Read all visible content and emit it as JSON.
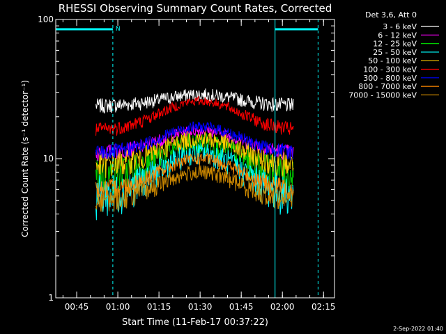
{
  "chart_data": {
    "type": "line",
    "title": "RHESSI Observing Summary Count Rates, Corrected",
    "xlabel": "Start Time (11-Feb-17 00:37:22)",
    "ylabel": "Corrected Count Rate (s⁻¹ detector⁻¹)",
    "yscale": "log",
    "ylim": [
      1,
      100
    ],
    "xlim": [
      "00:37:22",
      "02:19:00"
    ],
    "x_ticks": [
      "00:45",
      "01:00",
      "01:15",
      "01:30",
      "01:45",
      "02:00",
      "02:15"
    ],
    "y_ticks": [
      "1",
      "10",
      "100"
    ],
    "grid": false,
    "legend_position": "outside top-right",
    "legend_title": "Det 3,6, Att 0",
    "footer_date": "2-Sep-2022 01:40",
    "flag_labels": [
      "N"
    ],
    "data_start": "00:52",
    "data_end": "02:04",
    "vlines": [
      "00:37:22",
      "00:58:10",
      "01:57:20",
      "02:13:00"
    ],
    "night_flag_segments": [
      [
        "00:37:22",
        "00:58:10"
      ],
      [
        "01:57:20",
        "02:13:00"
      ]
    ],
    "series": [
      {
        "name": "3 - 6 keV",
        "color": "#ffffff",
        "baseline": 24,
        "peak": 29,
        "noise": 3
      },
      {
        "name": "6 - 12 keV",
        "color": "#ff00ff",
        "baseline": 11,
        "peak": 16,
        "noise": 1.5
      },
      {
        "name": "12 - 25 keV",
        "color": "#00cc00",
        "baseline": 7.5,
        "peak": 13,
        "noise": 2.5
      },
      {
        "name": "25 - 50 keV",
        "color": "#00ffff",
        "baseline": 5.5,
        "peak": 11,
        "noise": 2
      },
      {
        "name": "50 - 100 keV",
        "color": "#ffcc00",
        "baseline": 9,
        "peak": 14,
        "noise": 2
      },
      {
        "name": "100 - 300 keV",
        "color": "#ff0000",
        "baseline": 16,
        "peak": 26,
        "noise": 2
      },
      {
        "name": "300 - 800 keV",
        "color": "#0000ff",
        "baseline": 11,
        "peak": 17,
        "noise": 1.5
      },
      {
        "name": "800 - 7000 keV",
        "color": "#ff8800",
        "baseline": 6,
        "peak": 10,
        "noise": 1
      },
      {
        "name": "7000 - 15000 keV",
        "color": "#cc8800",
        "baseline": 5,
        "peak": 8,
        "noise": 1
      }
    ]
  }
}
